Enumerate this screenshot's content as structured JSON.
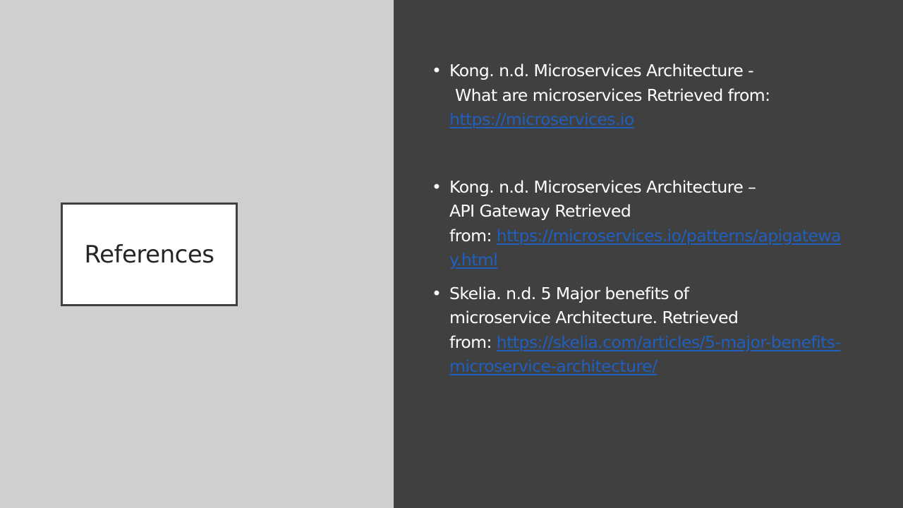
{
  "slide": {
    "title": "References"
  },
  "references": [
    {
      "line1": "Kong. n.d. Microservices Architecture -",
      "line2": "What are microservices Retrieved from:",
      "link": "https://microservices.io"
    },
    {
      "line1": "Kong. n.d. Microservices Architecture –",
      "line2": "API Gateway Retrieved",
      "prefix": "from: ",
      "link": "https://microservices.io/patterns/apigateway.html"
    },
    {
      "line1": "Skelia. n.d. 5 Major benefits of",
      "line2": "microservice Architecture. Retrieved",
      "prefix": "from: ",
      "link": "https://skelia.com/articles/5-major-benefits-microservice-architecture/"
    }
  ],
  "colors": {
    "left_background": "#d0cece",
    "right_background": "#404040",
    "link": "#1f5fbf",
    "text": "#ffffff"
  }
}
